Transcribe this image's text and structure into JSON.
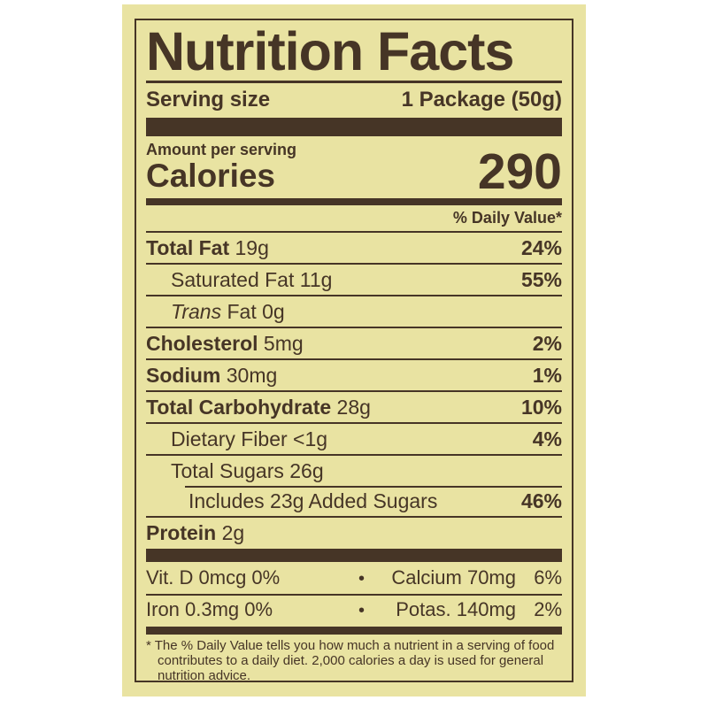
{
  "label": {
    "title": "Nutrition Facts",
    "serving_size": {
      "label": "Serving size",
      "value": "1 Package (50g)"
    },
    "amount_per_serving": "Amount per serving",
    "calories": {
      "label": "Calories",
      "value": "290"
    },
    "daily_value_header": "% Daily Value*",
    "rows": [
      {
        "bold": "Total Fat",
        "rest": " 19g",
        "dv": "24%"
      },
      {
        "rest": "Saturated Fat 11g",
        "dv": "55%"
      },
      {
        "italic": "Trans",
        "rest": " Fat 0g",
        "dv": ""
      },
      {
        "bold": "Cholesterol",
        "rest": " 5mg",
        "dv": "2%"
      },
      {
        "bold": "Sodium",
        "rest": " 30mg",
        "dv": "1%"
      },
      {
        "bold": "Total Carbohydrate",
        "rest": " 28g",
        "dv": "10%"
      },
      {
        "rest": "Dietary Fiber <1g",
        "dv": "4%"
      },
      {
        "rest": "Total Sugars 26g",
        "dv": ""
      },
      {
        "rest": "Includes 23g Added Sugars",
        "dv": "46%"
      },
      {
        "bold": "Protein",
        "rest": " 2g",
        "dv": ""
      }
    ],
    "bullet": "•",
    "micronutrients": [
      {
        "left": "Vit. D 0mcg 0%",
        "right_name": "Calcium 70mg",
        "right_dv": "6%"
      },
      {
        "left": "Iron 0.3mg 0%",
        "right_name": "Potas. 140mg",
        "right_dv": "2%"
      }
    ],
    "footnote": "* The % Daily Value tells you how much a nutrient in a serving of food contributes to a daily diet. 2,000 calories a day is used for general nutrition advice."
  },
  "colors": {
    "paper": "#E9E3A2",
    "ink": "#463526",
    "page_background": "#FFFFFF"
  }
}
